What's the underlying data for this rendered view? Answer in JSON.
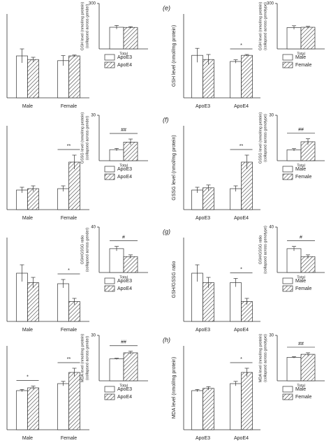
{
  "chart_data": [
    {
      "type": "bar",
      "categories": [
        "Male",
        "Female"
      ],
      "series": [
        {
          "name": "ApoE3",
          "fill": "white",
          "values": [
            150,
            133
          ],
          "errors": [
            25,
            18
          ]
        },
        {
          "name": "ApoE4",
          "fill": "hatch",
          "values": [
            137,
            150
          ],
          "errors": [
            8,
            3
          ]
        }
      ],
      "ylim": [
        0,
        300
      ],
      "legend": true,
      "annotations": []
    },
    {
      "type": "bar",
      "ylabel": [
        "GSH level (nmol/mg protein)",
        "(collapsed across gender)"
      ],
      "categories": [
        "Total"
      ],
      "series": [
        {
          "fill": "white",
          "values": [
            143
          ],
          "errors": [
            12
          ]
        },
        {
          "fill": "hatch",
          "values": [
            142
          ],
          "errors": [
            5
          ]
        }
      ],
      "ylim": [
        0,
        300
      ],
      "yticks": [
        300
      ],
      "annotations": []
    },
    {
      "type": "bar",
      "panel": "(e)",
      "ylabel": [
        "GSH level (nmol/mg protein)"
      ],
      "categories": [
        "ApoE3",
        "ApoE4"
      ],
      "series": [
        {
          "name": "Male",
          "fill": "white",
          "values": [
            152,
            130
          ],
          "errors": [
            25,
            6
          ]
        },
        {
          "name": "Female",
          "fill": "hatch",
          "values": [
            137,
            152
          ],
          "errors": [
            18,
            3
          ]
        }
      ],
      "ylim": [
        0,
        300
      ],
      "legend": true,
      "annotations": [
        {
          "text": "*",
          "category": 1
        }
      ]
    },
    {
      "type": "bar",
      "ylabel": [
        "GSH level (nmol/mg protein)",
        "(collapsed across genotype)"
      ],
      "categories": [
        "Total"
      ],
      "series": [
        {
          "fill": "white",
          "values": [
            141
          ],
          "errors": [
            12
          ]
        },
        {
          "fill": "hatch",
          "values": [
            143
          ],
          "errors": [
            6
          ]
        }
      ],
      "ylim": [
        0,
        300
      ],
      "yticks": [
        300
      ],
      "annotations": []
    },
    {
      "type": "bar",
      "categories": [
        "Male",
        "Female"
      ],
      "series": [
        {
          "name": "ApoE3",
          "fill": "white",
          "values": [
            7,
            7.5
          ],
          "errors": [
            1,
            1
          ]
        },
        {
          "name": "ApoE4",
          "fill": "hatch",
          "values": [
            7.5,
            17
          ],
          "errors": [
            1,
            2.5
          ]
        }
      ],
      "ylim": [
        0,
        30
      ],
      "legend": true,
      "annotations": [
        {
          "text": "**",
          "category": 1
        }
      ]
    },
    {
      "type": "bar",
      "ylabel": [
        "GSSG level (nmol/mg protein)",
        "(collapsed across gender)"
      ],
      "categories": [
        "Total"
      ],
      "series": [
        {
          "fill": "white",
          "values": [
            7.3
          ],
          "errors": [
            0.8
          ]
        },
        {
          "fill": "hatch",
          "values": [
            12.3
          ],
          "errors": [
            2
          ]
        }
      ],
      "ylim": [
        0,
        30
      ],
      "yticks": [
        30
      ],
      "annotations": [
        {
          "text": "##",
          "category": 0
        }
      ]
    },
    {
      "type": "bar",
      "panel": "(f)",
      "ylabel": [
        "GSSG level (nmol/mg protein)"
      ],
      "categories": [
        "ApoE3",
        "ApoE4"
      ],
      "series": [
        {
          "name": "Male",
          "fill": "white",
          "values": [
            7,
            7.5
          ],
          "errors": [
            1,
            1
          ]
        },
        {
          "name": "Female",
          "fill": "hatch",
          "values": [
            7.8,
            17
          ],
          "errors": [
            1,
            2.5
          ]
        }
      ],
      "ylim": [
        0,
        30
      ],
      "legend": true,
      "annotations": [
        {
          "text": "**",
          "category": 1
        }
      ]
    },
    {
      "type": "bar",
      "ylabel": [
        "GSSG level (nmol/mg protein)",
        "(collapsed across genotype)"
      ],
      "categories": [
        "Total"
      ],
      "series": [
        {
          "fill": "white",
          "values": [
            7.2
          ],
          "errors": [
            0.8
          ]
        },
        {
          "fill": "hatch",
          "values": [
            12.5
          ],
          "errors": [
            2
          ]
        }
      ],
      "ylim": [
        0,
        30
      ],
      "yticks": [
        30
      ],
      "annotations": [
        {
          "text": "##",
          "category": 0
        }
      ]
    },
    {
      "type": "bar",
      "categories": [
        "Male",
        "Female"
      ],
      "series": [
        {
          "name": "ApoE3",
          "fill": "white",
          "values": [
            23,
            18
          ],
          "errors": [
            4,
            2
          ]
        },
        {
          "name": "ApoE4",
          "fill": "hatch",
          "values": [
            18.5,
            9.5
          ],
          "errors": [
            2.5,
            1.5
          ]
        }
      ],
      "ylim": [
        0,
        40
      ],
      "legend": true,
      "annotations": [
        {
          "text": "*",
          "category": 1
        }
      ]
    },
    {
      "type": "bar",
      "ylabel": [
        "GSH/GSSG ratio",
        "(collapsed across gender)"
      ],
      "categories": [
        "Total"
      ],
      "series": [
        {
          "fill": "white",
          "values": [
            21
          ],
          "errors": [
            2
          ]
        },
        {
          "fill": "hatch",
          "values": [
            14
          ],
          "errors": [
            1.5
          ]
        }
      ],
      "ylim": [
        0,
        40
      ],
      "yticks": [
        40
      ],
      "annotations": [
        {
          "text": "#",
          "category": 0
        }
      ]
    },
    {
      "type": "bar",
      "panel": "(g)",
      "ylabel": [
        "GSH/GSSG ratio"
      ],
      "categories": [
        "ApoE3",
        "ApoE4"
      ],
      "series": [
        {
          "name": "Male",
          "fill": "white",
          "values": [
            23,
            18.5
          ],
          "errors": [
            4,
            2
          ]
        },
        {
          "name": "Female",
          "fill": "hatch",
          "values": [
            18.5,
            9.5
          ],
          "errors": [
            2.5,
            1.5
          ]
        }
      ],
      "ylim": [
        0,
        40
      ],
      "legend": true,
      "annotations": [
        {
          "text": "*",
          "category": 1
        }
      ]
    },
    {
      "type": "bar",
      "ylabel": [
        "GSH/GSSG ratio",
        "(collapsed across genotype)"
      ],
      "categories": [
        "Total"
      ],
      "series": [
        {
          "fill": "white",
          "values": [
            21
          ],
          "errors": [
            2
          ]
        },
        {
          "fill": "hatch",
          "values": [
            14
          ],
          "errors": [
            1.5
          ]
        }
      ],
      "ylim": [
        0,
        40
      ],
      "yticks": [
        40
      ],
      "annotations": [
        {
          "text": "#",
          "category": 0
        }
      ]
    },
    {
      "type": "bar",
      "categories": [
        "Male",
        "Female"
      ],
      "series": [
        {
          "name": "ApoE3",
          "fill": "white",
          "values": [
            14,
            16.5
          ],
          "errors": [
            0.4,
            0.8
          ]
        },
        {
          "name": "ApoE4",
          "fill": "hatch",
          "values": [
            15,
            20.5
          ],
          "errors": [
            0.6,
            1.5
          ]
        }
      ],
      "ylim": [
        0,
        30
      ],
      "legend": true,
      "annotations": [
        {
          "text": "*",
          "category": 0
        },
        {
          "text": "**",
          "category": 1
        }
      ]
    },
    {
      "type": "bar",
      "ylabel": [
        "MDA level (nmol/mg protein)",
        "(collapsed across gender)"
      ],
      "categories": [
        "Total"
      ],
      "series": [
        {
          "fill": "white",
          "values": [
            14.5
          ],
          "errors": [
            0.4
          ]
        },
        {
          "fill": "hatch",
          "values": [
            18.5
          ],
          "errors": [
            1
          ]
        }
      ],
      "ylim": [
        0,
        30
      ],
      "yticks": [
        30
      ],
      "annotations": [
        {
          "text": "##",
          "category": 0
        }
      ]
    },
    {
      "type": "bar",
      "panel": "(h)",
      "ylabel": [
        "MDA level (nmol/mg protein)"
      ],
      "categories": [
        "ApoE3",
        "ApoE4"
      ],
      "series": [
        {
          "name": "Male",
          "fill": "white",
          "values": [
            14,
            16.5
          ],
          "errors": [
            0.4,
            0.8
          ]
        },
        {
          "name": "Female",
          "fill": "hatch",
          "values": [
            14.8,
            20.5
          ],
          "errors": [
            0.6,
            1.5
          ]
        }
      ],
      "ylim": [
        0,
        30
      ],
      "legend": true,
      "annotations": [
        {
          "text": "*",
          "category": 1
        }
      ]
    },
    {
      "type": "bar",
      "ylabel": [
        "MDA level (nmol/mg protein)",
        "(collapsed across genotype)"
      ],
      "categories": [
        "Total"
      ],
      "series": [
        {
          "fill": "white",
          "values": [
            15.5
          ],
          "errors": [
            0.5
          ]
        },
        {
          "fill": "hatch",
          "values": [
            17.5
          ],
          "errors": [
            1
          ]
        }
      ],
      "ylim": [
        0,
        30
      ],
      "yticks": [
        30
      ],
      "annotations": [
        {
          "text": "##",
          "category": 0
        }
      ]
    }
  ]
}
